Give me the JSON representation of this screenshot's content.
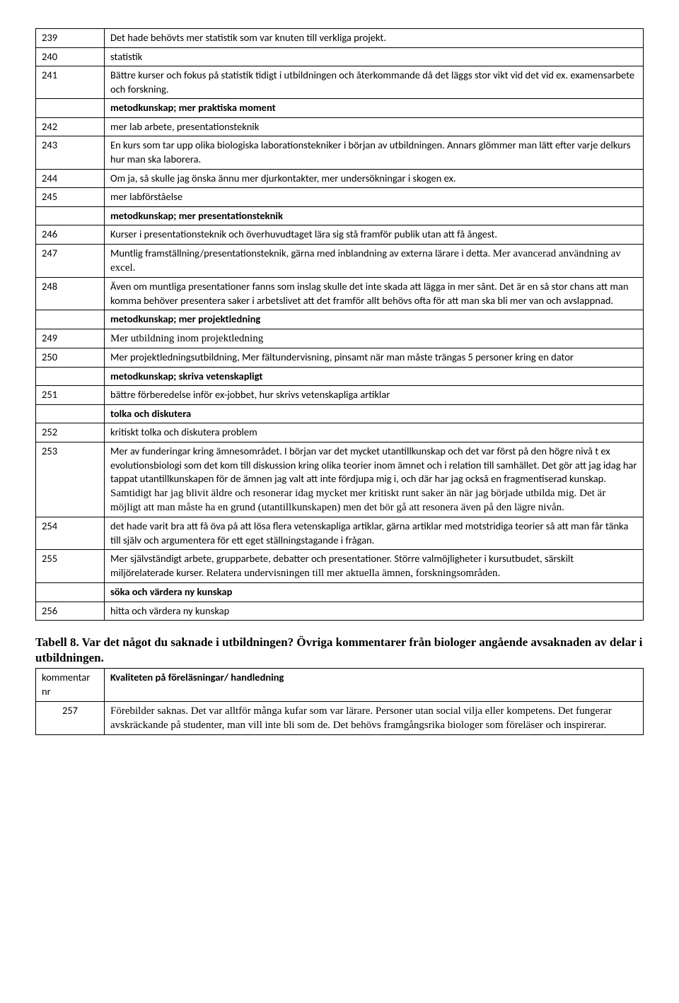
{
  "rows1": [
    {
      "n": "239",
      "t": "Det hade behövts mer statistik som var knuten till verkliga projekt.",
      "b": false
    },
    {
      "n": "240",
      "t": "statistik",
      "b": false
    },
    {
      "n": "241",
      "t": "Bättre kurser och fokus på statistik tidigt i utbildningen och återkommande då det läggs stor vikt vid det vid ex. examensarbete och forskning.",
      "b": false
    },
    {
      "n": "",
      "t": "metodkunskap; mer praktiska moment",
      "b": true
    },
    {
      "n": "242",
      "t": "mer lab arbete, presentationsteknik",
      "b": false
    },
    {
      "n": "243",
      "t": "En kurs som tar upp olika biologiska laborationstekniker i början av utbildningen. Annars glömmer man lätt efter varje delkurs hur man ska laborera.",
      "b": false
    },
    {
      "n": "244",
      "t": "Om ja, så skulle jag önska ännu mer djurkontakter, mer undersökningar i skogen ex.",
      "b": false
    },
    {
      "n": "245",
      "t": "mer labförståelse",
      "b": false
    },
    {
      "n": "",
      "t": "metodkunskap; mer presentationsteknik",
      "b": true
    },
    {
      "n": "246",
      "t": "Kurser i presentationsteknik och överhuvudtaget lära sig stå framför publik utan att få ångest.",
      "b": false
    },
    {
      "n": "247",
      "t": "Muntlig framställning/presentationsteknik, gärna med inblandning av externa lärare i detta. <span class=\"times\">Mer avancerad användning av excel.</span>",
      "b": false,
      "html": true
    },
    {
      "n": "248",
      "t": "Även om muntliga presentationer fanns som inslag skulle det inte skada att lägga in mer sånt. Det är en så stor chans att man komma behöver presentera saker i arbetslivet att det framför allt behövs ofta för att man ska bli mer van och avslappnad.",
      "b": false
    },
    {
      "n": "",
      "t": "metodkunskap; mer projektledning",
      "b": true
    },
    {
      "n": "249",
      "t": "<span class=\"times\">Mer utbildning inom projektledning</span>",
      "b": false,
      "html": true
    },
    {
      "n": "250",
      "t": "Mer projektledningsutbildning, Mer fältundervisning, pinsamt när man måste trängas 5 personer kring en dator",
      "b": false
    },
    {
      "n": "",
      "t": " metodkunskap; skriva vetenskapligt",
      "b": true
    },
    {
      "n": "251",
      "t": "bättre förberedelse inför ex-jobbet, hur skrivs vetenskapliga artiklar",
      "b": false
    },
    {
      "n": "",
      "t": "tolka och diskutera",
      "b": true
    },
    {
      "n": "252",
      "t": "kritiskt tolka och diskutera problem",
      "b": false
    },
    {
      "n": "253",
      "t": "Mer av funderingar kring ämnesområdet. I början var det mycket utantillkunskap och det var först på den högre nivå t ex evolutionsbiologi som det kom till diskussion kring olika teorier inom ämnet och i relation till samhället. Det gör att jag idag har tappat utantillkunskapen för de ämnen jag valt att inte fördjupa mig i, och där har jag också en fragmentiserad kunskap. <span class=\"times\">Samtidigt har jag blivit äldre och resonerar idag mycket mer kritiskt runt saker än när jag började utbilda mig. Det är möjligt att man måste ha en grund (utantillkunskapen) men det bör gå att resonera även på den lägre nivån.</span>",
      "b": false,
      "html": true
    },
    {
      "n": "254",
      "t": "det hade varit bra att få öva på att lösa flera vetenskapliga artiklar, gärna artiklar med motstridiga teorier så att man får tänka till själv och argumentera för ett eget ställningstagande i frågan.",
      "b": false
    },
    {
      "n": "255",
      "t": "Mer självständigt arbete, grupparbete, debatter och presentationer. Större valmöjligheter i kursutbudet, särskilt miljörelaterade kurser. <span class=\"times\">Relatera undervisningen till mer aktuella ämnen, forskningsområden.</span>",
      "b": false,
      "html": true
    },
    {
      "n": "",
      "t": "söka och värdera ny kunskap",
      "b": true
    },
    {
      "n": "256",
      "t": "hitta och värdera ny kunskap",
      "b": false
    }
  ],
  "caption": "Tabell 8. Var det något du saknade i utbildningen? Övriga kommentarer från biologer angående avsaknaden av delar i utbildningen.",
  "t2header": {
    "c1": "kommentar nr",
    "c2": "Kvaliteten på föreläsningar/ handledning"
  },
  "rows2": [
    {
      "n": "257",
      "t": "<span class=\"times\">Förebilder saknas. Det var alltför många kufar som var lärare. Personer utan social vilja eller kompetens. Det fungerar avskräckande på studenter, man vill inte bli som de. Det behövs framgångsrika biologer som föreläser och inspirerar.</span>",
      "html": true
    }
  ]
}
